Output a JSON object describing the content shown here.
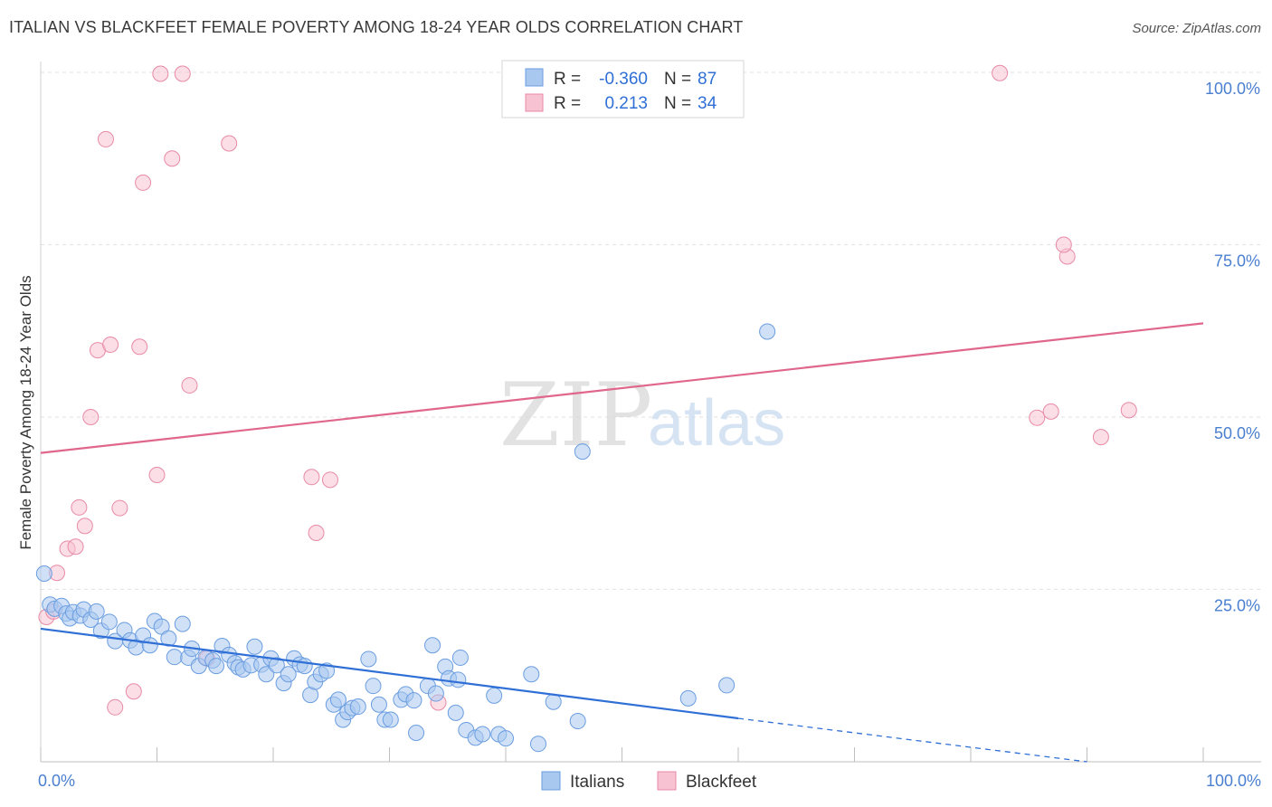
{
  "header": {
    "title": "ITALIAN VS BLACKFEET FEMALE POVERTY AMONG 18-24 YEAR OLDS CORRELATION CHART",
    "source": "Source: ZipAtlas.com"
  },
  "watermark": {
    "zip": "ZIP",
    "atlas": "atlas"
  },
  "stats": [
    {
      "r_label": "R =",
      "r": "-0.360",
      "n_label": "N =",
      "n": "87",
      "color": "#a9c8f0",
      "stroke": "#6a9de0"
    },
    {
      "r_label": "R =",
      "r": "0.213",
      "n_label": "N =",
      "n": "34",
      "color": "#f7c3d2",
      "stroke": "#e88aa6"
    }
  ],
  "chart_data": {
    "type": "scatter",
    "title": "ITALIAN VS BLACKFEET FEMALE POVERTY AMONG 18-24 YEAR OLDS CORRELATION CHART",
    "xlabel": "",
    "ylabel": "Female Poverty Among 18-24 Year Olds",
    "xlim": [
      0,
      100
    ],
    "ylim": [
      0,
      102
    ],
    "x_tick_labels": [
      "0.0%",
      "100.0%"
    ],
    "y_ticks": [
      25,
      50,
      75,
      100
    ],
    "y_tick_labels": [
      "25.0%",
      "50.0%",
      "75.0%",
      "100.0%"
    ],
    "grid": true,
    "legend": "bottom-center",
    "series": [
      {
        "name": "Italians",
        "color": "#a9c8f0",
        "stroke": "#6a9de0",
        "line_color": "#2f6fd6",
        "trend": {
          "x0": 0,
          "y0": 19.3,
          "x1": 60,
          "y1": 6.3,
          "dash_to_x": 90,
          "dash_to_y": 0
        },
        "points": [
          [
            0.3,
            27.3
          ],
          [
            0.8,
            22.8
          ],
          [
            1.2,
            22.2
          ],
          [
            1.8,
            22.6
          ],
          [
            2.2,
            21.5
          ],
          [
            2.5,
            20.8
          ],
          [
            2.8,
            21.7
          ],
          [
            3.4,
            21.2
          ],
          [
            3.7,
            22.1
          ],
          [
            4.3,
            20.6
          ],
          [
            4.8,
            21.8
          ],
          [
            5.2,
            19.0
          ],
          [
            5.9,
            20.3
          ],
          [
            6.4,
            17.5
          ],
          [
            7.2,
            19.1
          ],
          [
            7.7,
            17.6
          ],
          [
            8.2,
            16.6
          ],
          [
            8.8,
            18.3
          ],
          [
            9.4,
            16.9
          ],
          [
            9.8,
            20.4
          ],
          [
            10.4,
            19.6
          ],
          [
            11.0,
            17.9
          ],
          [
            11.5,
            15.2
          ],
          [
            12.2,
            20.0
          ],
          [
            12.7,
            15.1
          ],
          [
            13.0,
            16.4
          ],
          [
            13.6,
            13.9
          ],
          [
            14.2,
            15.1
          ],
          [
            14.8,
            14.7
          ],
          [
            15.1,
            13.9
          ],
          [
            15.6,
            16.8
          ],
          [
            16.2,
            15.5
          ],
          [
            16.7,
            14.3
          ],
          [
            17.0,
            13.7
          ],
          [
            17.4,
            13.4
          ],
          [
            18.1,
            14.0
          ],
          [
            18.4,
            16.7
          ],
          [
            19.0,
            14.1
          ],
          [
            19.4,
            12.7
          ],
          [
            19.8,
            15.0
          ],
          [
            20.3,
            14.0
          ],
          [
            20.9,
            11.4
          ],
          [
            21.3,
            12.7
          ],
          [
            21.8,
            15.0
          ],
          [
            22.3,
            14.1
          ],
          [
            22.7,
            13.9
          ],
          [
            23.2,
            9.7
          ],
          [
            23.6,
            11.6
          ],
          [
            24.1,
            12.7
          ],
          [
            24.6,
            13.2
          ],
          [
            25.2,
            8.3
          ],
          [
            25.6,
            9.0
          ],
          [
            26.0,
            6.1
          ],
          [
            26.4,
            7.2
          ],
          [
            26.8,
            7.8
          ],
          [
            27.3,
            8.0
          ],
          [
            28.2,
            14.9
          ],
          [
            28.6,
            11.0
          ],
          [
            29.1,
            8.3
          ],
          [
            29.6,
            6.1
          ],
          [
            30.1,
            6.1
          ],
          [
            31.0,
            9.0
          ],
          [
            31.4,
            9.8
          ],
          [
            32.1,
            8.9
          ],
          [
            32.3,
            4.2
          ],
          [
            33.3,
            11.0
          ],
          [
            33.7,
            16.9
          ],
          [
            34.0,
            9.9
          ],
          [
            34.8,
            13.8
          ],
          [
            35.1,
            12.1
          ],
          [
            35.9,
            11.9
          ],
          [
            36.1,
            15.1
          ],
          [
            36.6,
            4.6
          ],
          [
            37.4,
            3.5
          ],
          [
            38.0,
            4.0
          ],
          [
            39.0,
            9.6
          ],
          [
            39.4,
            4.0
          ],
          [
            40.0,
            3.4
          ],
          [
            42.8,
            2.6
          ],
          [
            42.2,
            12.7
          ],
          [
            44.1,
            8.7
          ],
          [
            46.2,
            5.9
          ],
          [
            62.5,
            62.4
          ],
          [
            46.6,
            45.0
          ],
          [
            55.7,
            9.2
          ],
          [
            59.0,
            11.1
          ],
          [
            35.7,
            7.1
          ]
        ]
      },
      {
        "name": "Blackfeet",
        "color": "#f7c3d2",
        "stroke": "#e88aa6",
        "line_color": "#e0668c",
        "trend": {
          "x0": 0,
          "y0": 44.8,
          "x1": 100,
          "y1": 63.6
        },
        "points": [
          [
            0.5,
            21.0
          ],
          [
            1.1,
            21.8
          ],
          [
            1.4,
            27.4
          ],
          [
            2.3,
            30.9
          ],
          [
            3.0,
            31.2
          ],
          [
            3.3,
            36.9
          ],
          [
            3.8,
            34.2
          ],
          [
            4.3,
            50.0
          ],
          [
            4.9,
            59.7
          ],
          [
            5.6,
            90.3
          ],
          [
            6.0,
            60.5
          ],
          [
            6.4,
            7.9
          ],
          [
            6.8,
            36.8
          ],
          [
            8.0,
            10.2
          ],
          [
            8.5,
            60.2
          ],
          [
            8.8,
            84.0
          ],
          [
            10.0,
            41.6
          ],
          [
            10.3,
            99.8
          ],
          [
            11.3,
            87.5
          ],
          [
            12.2,
            99.8
          ],
          [
            12.8,
            54.6
          ],
          [
            14.3,
            15.0
          ],
          [
            16.2,
            89.7
          ],
          [
            23.3,
            41.3
          ],
          [
            23.7,
            33.2
          ],
          [
            24.9,
            40.9
          ],
          [
            34.2,
            8.6
          ],
          [
            82.5,
            99.9
          ],
          [
            85.7,
            49.9
          ],
          [
            86.9,
            50.8
          ],
          [
            88.3,
            73.3
          ],
          [
            91.2,
            47.1
          ],
          [
            93.6,
            51.0
          ],
          [
            88.0,
            75.0
          ]
        ]
      }
    ]
  }
}
